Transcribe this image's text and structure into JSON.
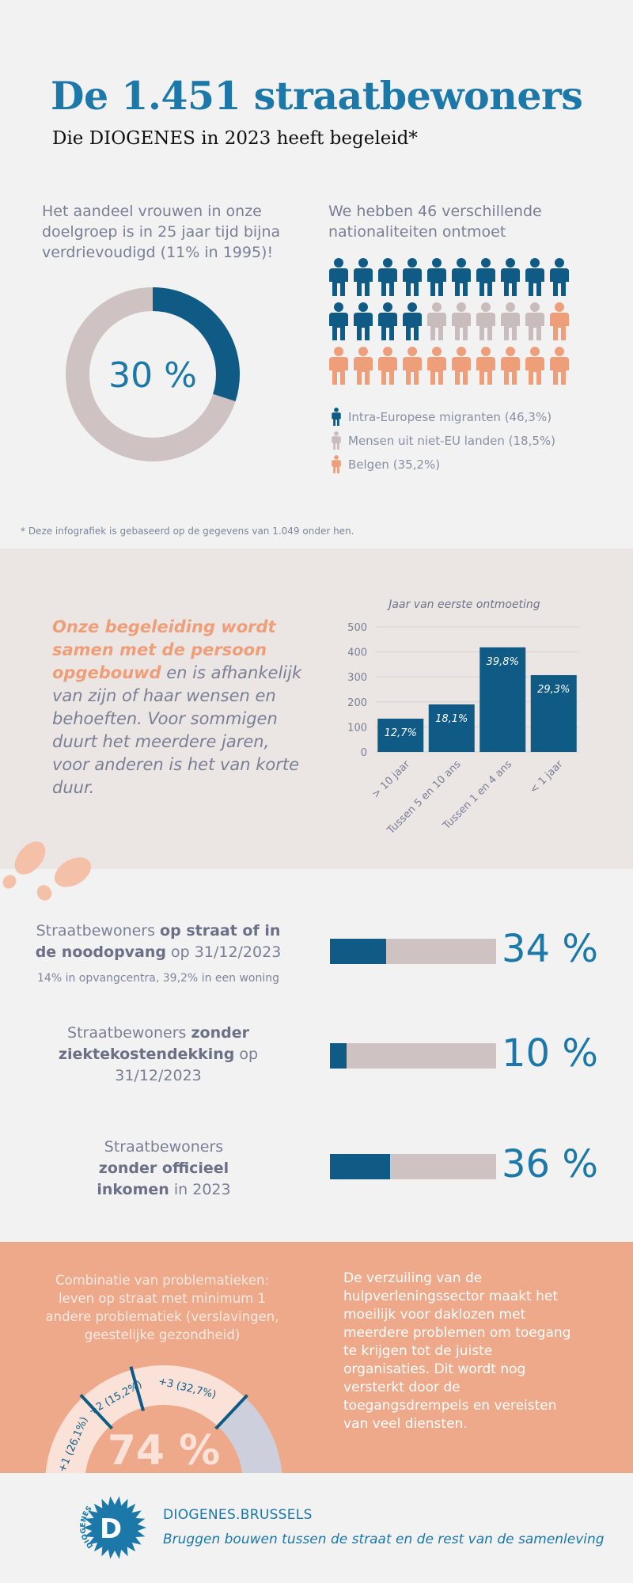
{
  "header": {
    "title": "De 1.451 straatbewoners",
    "subtitle": "Die DIOGENES in 2023 heeft begeleid*"
  },
  "women": {
    "text": "Het aandeel vrouwen in onze doelgroep is in 25 jaar tijd bijna verdrievoudigd (11% in 1995)!",
    "percent_label": "30 %",
    "percent_value": 30,
    "colors": {
      "fill": "#0f5b86",
      "track": "#cfc2c2"
    }
  },
  "nationalities": {
    "text": "We hebben 46 verschillende nationaliteiten ontmoet",
    "people_counts": {
      "intra_eu": 14,
      "non_eu": 5,
      "belgian": 11
    },
    "legend": [
      {
        "label": "Intra-Europese migranten (46,3%)",
        "color": "#0f5b86",
        "icon": "person-icon"
      },
      {
        "label": "Mensen uit niet-EU landen (18,5%)",
        "color": "#c9bcbc",
        "icon": "person-icon"
      },
      {
        "label": "Belgen (35,2%)",
        "color": "#ee9f7a",
        "icon": "person-icon"
      }
    ]
  },
  "footnote": "* Deze infografiek is gebaseerd op de gegevens van 1.049 onder hen.",
  "approach": {
    "highlight": "Onze begeleiding wordt samen met de persoon opgebouwd",
    "rest": " en is afhankelijk van zijn of haar wensen en behoeften. Voor sommigen duurt het meerdere jaren, voor anderen is het van korte duur."
  },
  "chart_data": {
    "type": "bar",
    "title": "Jaar van eerste ontmoeting",
    "categories": [
      "> 10 jaar",
      "Tussen 5 en 10 ans",
      "Tussen 1 en 4 ans",
      "< 1 jaar"
    ],
    "values": [
      133,
      190,
      418,
      307
    ],
    "data_labels": [
      "12,7%",
      "18,1%",
      "39,8%",
      "29,3%"
    ],
    "yticks": [
      0,
      100,
      200,
      300,
      400,
      500
    ],
    "ylim": [
      0,
      500
    ],
    "grid": true,
    "bar_color": "#0f5b86"
  },
  "stats": [
    {
      "prefix": "Straatbewoners ",
      "bold": "op straat of in de noodopvang",
      "suffix": " op 31/12/2023",
      "sub": "14% in opvangcentra, 39,2% in een woning",
      "value": 34,
      "label": "34 %"
    },
    {
      "prefix": "Straatbewoners ",
      "bold": "zonder ziektekostendekking",
      "suffix": " op 31/12/2023",
      "sub": "",
      "value": 10,
      "label": "10 %"
    },
    {
      "prefix": "Straatbewoners ",
      "bold": "zonder officieel inkomen",
      "suffix": " in 2023",
      "sub": "",
      "value": 36,
      "label": "36 %"
    }
  ],
  "problems": {
    "text": "Combinatie van problematieken: leven op straat met minimum 1 andere problematiek (verslavingen, geestelijke gezondheid)",
    "total_label": "74 %",
    "segments": [
      {
        "label": "+1 (26,1%)",
        "value": 26.1
      },
      {
        "label": "+2 (15,2%)",
        "value": 15.2
      },
      {
        "label": "+3 (32,7%)",
        "value": 32.7
      }
    ],
    "side_text": "De verzuiling van de hulpverleningssector maakt het moeilijk voor daklozen met meerdere problemen om toegang te krijgen tot de juiste organisaties. Dit wordt nog versterkt door de toegangsdrempels en vereisten van veel diensten."
  },
  "footer": {
    "logo_text": "DIOGENES",
    "logo_letter": "D",
    "site": "DIOGENES.BRUSSELS",
    "tagline": "Bruggen bouwen tussen de straat en de rest van de samenleving"
  }
}
